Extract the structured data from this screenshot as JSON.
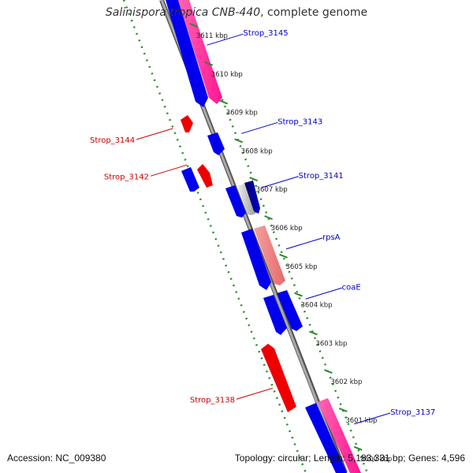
{
  "title": {
    "italic": "Salinispora tropica CNB-440",
    "rest": ", complete genome"
  },
  "footer": {
    "accession": "Accession: NC_009380",
    "topology": "Topology: circular; Length: 5,183,331 bp; Genes: 4,596"
  },
  "colors": {
    "forward_strand": "#0000ee",
    "reverse_strand": "#ee0000",
    "forward_label": "#0000cc",
    "reverse_label": "#cc0000",
    "backbone": "#888888",
    "ruler": "#2a8a2a"
  },
  "kbp_ticks": [
    {
      "label": "3611 kbp",
      "kb": 3611
    },
    {
      "label": "3610 kbp",
      "kb": 3610
    },
    {
      "label": "3609 kbp",
      "kb": 3609
    },
    {
      "label": "3608 kbp",
      "kb": 3608
    },
    {
      "label": "3607 kbp",
      "kb": 3607
    },
    {
      "label": "3606 kbp",
      "kb": 3606
    },
    {
      "label": "3605 kbp",
      "kb": 3605
    },
    {
      "label": "3604 kbp",
      "kb": 3604
    },
    {
      "label": "3603 kbp",
      "kb": 3603
    },
    {
      "label": "3602 kbp",
      "kb": 3602
    },
    {
      "label": "3601 kbp",
      "kb": 3601
    },
    {
      "label": "3600 kbp",
      "kb": 3600
    }
  ],
  "gene_labels": [
    {
      "id": "strop-3145",
      "text": "Strop_3145",
      "strand": "forward",
      "kb": 3610.75
    },
    {
      "id": "strop-3143",
      "text": "Strop_3143",
      "strand": "forward",
      "kb": 3608.45
    },
    {
      "id": "strop-3141",
      "text": "Strop_3141",
      "strand": "forward",
      "kb": 3607.05
    },
    {
      "id": "rpsa",
      "text": "rpsA",
      "strand": "forward",
      "kb": 3605.45
    },
    {
      "id": "coae",
      "text": "coaE",
      "strand": "forward",
      "kb": 3604.15
    },
    {
      "id": "strop-3137",
      "text": "Strop_3137",
      "strand": "forward",
      "kb": 3600.9
    },
    {
      "id": "strop-3144",
      "text": "Strop_3144",
      "strand": "reverse",
      "kb": 3608.05
    },
    {
      "id": "strop-3142",
      "text": "Strop_3142",
      "strand": "reverse",
      "kb": 3607.1
    },
    {
      "id": "strop-3138",
      "text": "Strop_3138",
      "strand": "reverse",
      "kb": 3601.3
    }
  ]
}
